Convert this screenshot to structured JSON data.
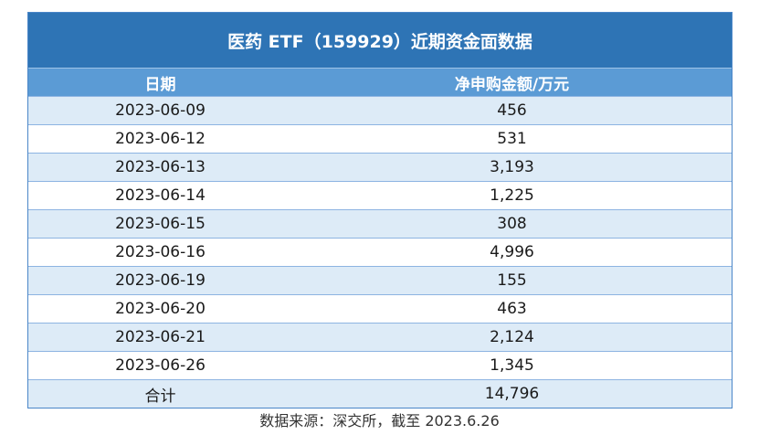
{
  "table": {
    "title": "医药 ETF（159929）近期资金面数据",
    "headers": {
      "date": "日期",
      "amount": "净申购金额/万元"
    },
    "rows": [
      {
        "date": "2023-06-09",
        "amount": "456"
      },
      {
        "date": "2023-06-12",
        "amount": "531"
      },
      {
        "date": "2023-06-13",
        "amount": "3,193"
      },
      {
        "date": "2023-06-14",
        "amount": "1,225"
      },
      {
        "date": "2023-06-15",
        "amount": "308"
      },
      {
        "date": "2023-06-16",
        "amount": "4,996"
      },
      {
        "date": "2023-06-19",
        "amount": "155"
      },
      {
        "date": "2023-06-20",
        "amount": "463"
      },
      {
        "date": "2023-06-21",
        "amount": "2,124"
      },
      {
        "date": "2023-06-26",
        "amount": "1,345"
      }
    ],
    "total": {
      "label": "合计",
      "amount": "14,796"
    }
  },
  "source": "数据来源：深交所，截至 2023.6.26",
  "colors": {
    "title_bg": "#2e74b5",
    "header_bg": "#5b9bd5",
    "stripe_bg": "#ddebf7"
  }
}
